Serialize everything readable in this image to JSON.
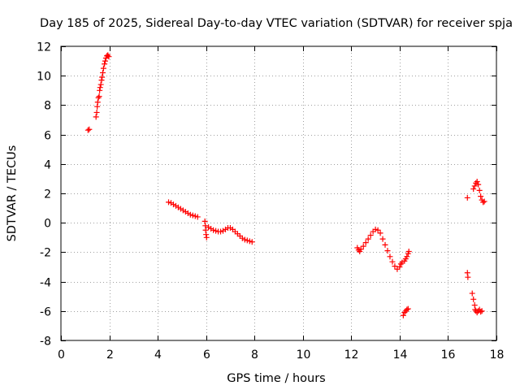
{
  "chart_data": {
    "type": "scatter",
    "title": "Day 185 of 2025, Sidereal Day-to-day VTEC variation (SDTVAR) for receiver spja",
    "xlabel": "GPS time / hours",
    "ylabel": "SDTVAR / TECUs",
    "xlim": [
      0,
      18
    ],
    "ylim": [
      -8,
      12
    ],
    "x_ticks": [
      0,
      2,
      4,
      6,
      8,
      10,
      12,
      14,
      16,
      18
    ],
    "y_ticks": [
      -8,
      -6,
      -4,
      -2,
      0,
      2,
      4,
      6,
      8,
      10,
      12
    ],
    "grid": true,
    "marker": "+",
    "color": "#ff0000",
    "series": [
      {
        "name": "segment 1",
        "points": [
          [
            1.12,
            6.3
          ],
          [
            1.17,
            6.35
          ],
          [
            1.45,
            7.2
          ],
          [
            1.48,
            7.5
          ],
          [
            1.5,
            7.9
          ],
          [
            1.52,
            8.2
          ],
          [
            1.55,
            8.5
          ],
          [
            1.58,
            8.6
          ],
          [
            1.6,
            9.0
          ],
          [
            1.62,
            9.2
          ],
          [
            1.65,
            9.4
          ],
          [
            1.68,
            9.7
          ],
          [
            1.7,
            9.9
          ],
          [
            1.73,
            10.2
          ],
          [
            1.76,
            10.5
          ],
          [
            1.8,
            10.8
          ],
          [
            1.83,
            11.0
          ],
          [
            1.86,
            11.2
          ],
          [
            1.9,
            11.35
          ],
          [
            1.94,
            11.4
          ],
          [
            1.98,
            11.3
          ]
        ]
      },
      {
        "name": "segment 2",
        "points": [
          [
            4.45,
            1.4
          ],
          [
            4.55,
            1.35
          ],
          [
            4.65,
            1.25
          ],
          [
            4.75,
            1.15
          ],
          [
            4.85,
            1.05
          ],
          [
            4.95,
            0.95
          ],
          [
            5.05,
            0.85
          ],
          [
            5.15,
            0.75
          ],
          [
            5.25,
            0.65
          ],
          [
            5.35,
            0.55
          ],
          [
            5.45,
            0.5
          ],
          [
            5.55,
            0.45
          ],
          [
            5.65,
            0.4
          ],
          [
            5.95,
            0.1
          ],
          [
            5.97,
            -0.2
          ],
          [
            5.98,
            -0.5
          ],
          [
            6.0,
            -0.8
          ],
          [
            6.02,
            -1.0
          ],
          [
            6.1,
            -0.3
          ],
          [
            6.2,
            -0.4
          ],
          [
            6.3,
            -0.5
          ],
          [
            6.4,
            -0.55
          ],
          [
            6.5,
            -0.6
          ],
          [
            6.6,
            -0.6
          ],
          [
            6.7,
            -0.55
          ],
          [
            6.8,
            -0.45
          ],
          [
            6.9,
            -0.35
          ],
          [
            7.0,
            -0.35
          ],
          [
            7.1,
            -0.45
          ],
          [
            7.2,
            -0.6
          ],
          [
            7.3,
            -0.75
          ],
          [
            7.4,
            -0.9
          ],
          [
            7.5,
            -1.05
          ],
          [
            7.6,
            -1.15
          ],
          [
            7.7,
            -1.2
          ],
          [
            7.8,
            -1.25
          ],
          [
            7.9,
            -1.3
          ]
        ]
      },
      {
        "name": "segment 3",
        "points": [
          [
            12.25,
            -1.7
          ],
          [
            12.3,
            -1.85
          ],
          [
            12.35,
            -1.95
          ],
          [
            12.4,
            -1.8
          ],
          [
            12.5,
            -1.6
          ],
          [
            12.6,
            -1.35
          ],
          [
            12.7,
            -1.1
          ],
          [
            12.8,
            -0.85
          ],
          [
            12.9,
            -0.6
          ],
          [
            13.0,
            -0.45
          ],
          [
            13.1,
            -0.5
          ],
          [
            13.2,
            -0.7
          ],
          [
            13.3,
            -1.1
          ],
          [
            13.4,
            -1.5
          ],
          [
            13.5,
            -1.9
          ],
          [
            13.6,
            -2.3
          ],
          [
            13.7,
            -2.65
          ],
          [
            13.8,
            -2.95
          ],
          [
            13.9,
            -3.15
          ],
          [
            14.0,
            -3.0
          ],
          [
            14.05,
            -2.8
          ],
          [
            14.1,
            -2.7
          ],
          [
            14.2,
            -2.6
          ],
          [
            14.25,
            -2.45
          ],
          [
            14.3,
            -2.3
          ],
          [
            14.35,
            -2.1
          ],
          [
            14.38,
            -1.95
          ],
          [
            14.15,
            -6.3
          ],
          [
            14.2,
            -6.1
          ],
          [
            14.25,
            -6.0
          ],
          [
            14.3,
            -5.9
          ],
          [
            14.35,
            -5.85
          ]
        ]
      },
      {
        "name": "segment 4",
        "points": [
          [
            16.8,
            1.7
          ],
          [
            16.8,
            -3.4
          ],
          [
            16.82,
            -3.7
          ],
          [
            17.0,
            -4.8
          ],
          [
            17.05,
            -5.2
          ],
          [
            17.1,
            -5.6
          ],
          [
            17.12,
            -5.9
          ],
          [
            17.15,
            -6.0
          ],
          [
            17.2,
            -6.1
          ],
          [
            17.25,
            -6.0
          ],
          [
            17.3,
            -5.9
          ],
          [
            17.35,
            -6.05
          ],
          [
            17.4,
            -6.0
          ],
          [
            17.05,
            2.3
          ],
          [
            17.1,
            2.5
          ],
          [
            17.15,
            2.7
          ],
          [
            17.2,
            2.8
          ],
          [
            17.25,
            2.6
          ],
          [
            17.3,
            2.2
          ],
          [
            17.35,
            1.8
          ],
          [
            17.4,
            1.55
          ],
          [
            17.45,
            1.4
          ],
          [
            17.5,
            1.45
          ]
        ]
      }
    ]
  }
}
